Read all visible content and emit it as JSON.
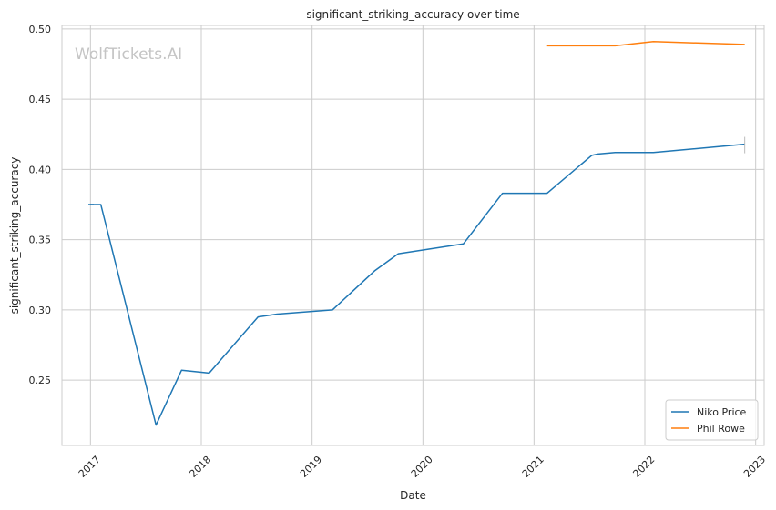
{
  "watermark": "WolfTickets.AI",
  "chart_data": {
    "type": "line",
    "title": "significant_striking_accuracy over time",
    "xlabel": "Date",
    "ylabel": "significant_striking_accuracy",
    "xlim": [
      "2016-09-29",
      "2023-01-29"
    ],
    "ylim": [
      0.2035,
      0.5025
    ],
    "x_ticks": [
      "2017",
      "2018",
      "2019",
      "2020",
      "2021",
      "2022",
      "2023"
    ],
    "y_ticks": [
      "0.25",
      "0.30",
      "0.35",
      "0.40",
      "0.45",
      "0.50"
    ],
    "grid": true,
    "legend_position": "bottom-right",
    "series": [
      {
        "name": "Niko Price",
        "color": "#1f77b4",
        "points": [
          [
            "2016-12-31",
            0.375
          ],
          [
            "2017-02-04",
            0.375
          ],
          [
            "2017-08-05",
            0.218
          ],
          [
            "2017-10-28",
            0.257
          ],
          [
            "2018-01-27",
            0.255
          ],
          [
            "2018-07-07",
            0.295
          ],
          [
            "2018-09-08",
            0.297
          ],
          [
            "2019-03-09",
            0.3
          ],
          [
            "2019-07-27",
            0.328
          ],
          [
            "2019-10-12",
            0.34
          ],
          [
            "2020-05-13",
            0.347
          ],
          [
            "2020-09-19",
            0.383
          ],
          [
            "2021-02-13",
            0.383
          ],
          [
            "2021-07-10",
            0.41
          ],
          [
            "2021-07-31",
            0.411
          ],
          [
            "2021-09-25",
            0.412
          ],
          [
            "2022-01-29",
            0.412
          ],
          [
            "2022-11-26",
            0.418
          ]
        ]
      },
      {
        "name": "Phil Rowe",
        "color": "#ff7f0e",
        "points": [
          [
            "2021-02-13",
            0.488
          ],
          [
            "2021-09-25",
            0.488
          ],
          [
            "2022-01-29",
            0.491
          ],
          [
            "2022-11-26",
            0.489
          ]
        ]
      }
    ]
  }
}
